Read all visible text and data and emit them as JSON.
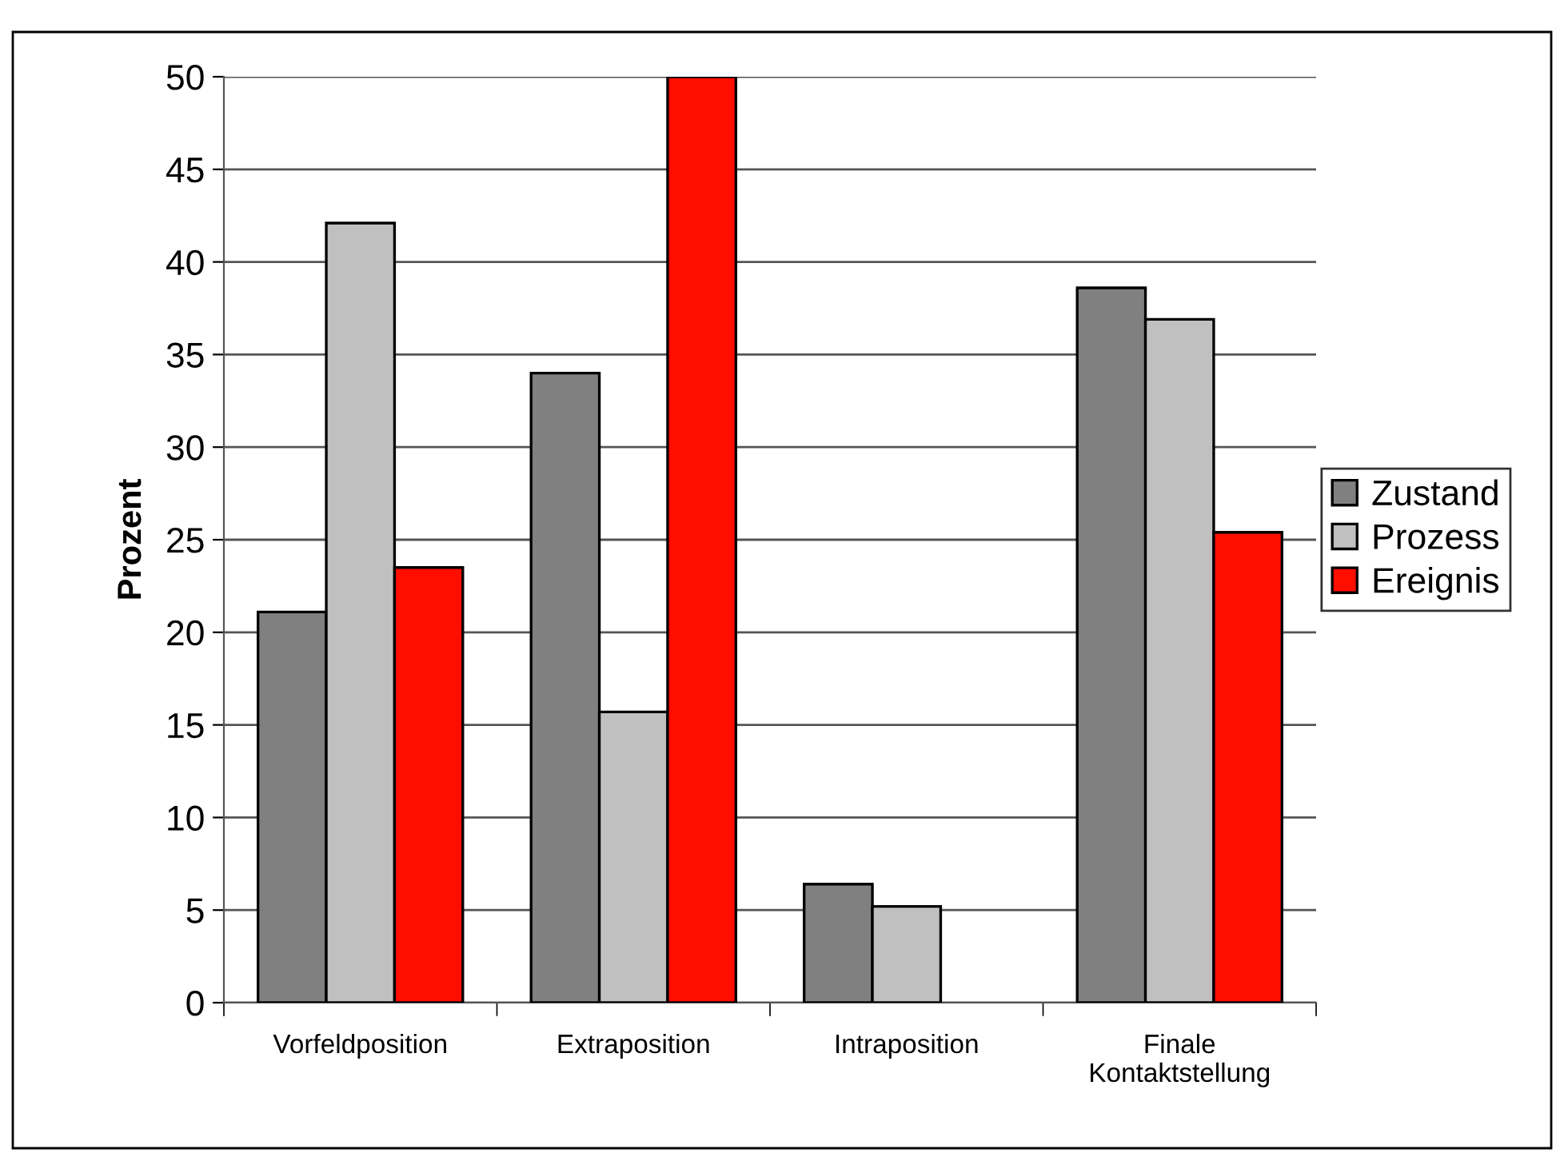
{
  "chart_data": {
    "type": "bar",
    "ylabel": "Prozent",
    "categories": [
      "Vorfeldposition",
      "Extraposition",
      "Intraposition",
      "Finale\nKontaktstellung"
    ],
    "series": [
      {
        "name": "Zustand",
        "color": "#808080",
        "values": [
          21.1,
          34.0,
          6.4,
          38.6
        ]
      },
      {
        "name": "Prozess",
        "color": "#c0c0c0",
        "values": [
          42.1,
          15.7,
          5.2,
          36.9
        ]
      },
      {
        "name": "Ereignis",
        "color": "#ff0e00",
        "values": [
          23.5,
          50,
          null,
          25.4
        ]
      }
    ],
    "ylim": [
      0,
      50
    ],
    "yticks": [
      0,
      5,
      10,
      15,
      20,
      25,
      30,
      35,
      40,
      45,
      50
    ],
    "grid": "y",
    "legend": "right"
  }
}
